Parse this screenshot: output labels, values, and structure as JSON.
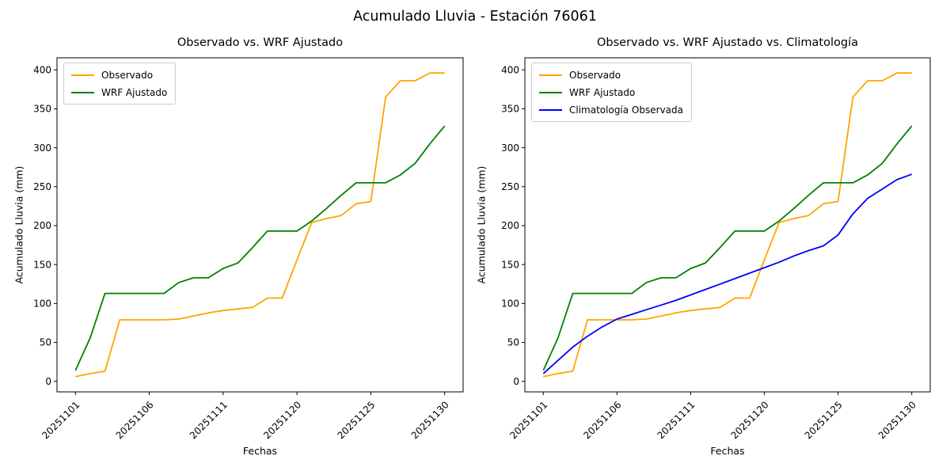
{
  "figure": {
    "title": "Acumulado Lluvia - Estación 76061",
    "background": "#ffffff",
    "text_color": "#000000",
    "spine_color": "#000000",
    "legend_border_color": "#cccccc"
  },
  "chart_data": [
    {
      "type": "line",
      "title": "Observado vs. WRF Ajustado",
      "xlabel": "Fechas",
      "ylabel": "Acumulado Lluvia (mm)",
      "n_points": 26,
      "y_ticks": [
        0,
        50,
        100,
        150,
        200,
        250,
        300,
        350,
        400
      ],
      "y_range_shown": [
        0,
        400
      ],
      "x_tick_positions": [
        0,
        5,
        10,
        15,
        20,
        25
      ],
      "x_tick_labels": [
        "20251101",
        "20251106",
        "20251111",
        "20251120",
        "20251125",
        "20251130"
      ],
      "x_tick_rotation_deg": 45,
      "grid": false,
      "legend_position": "upper left",
      "series": [
        {
          "name": "Observado",
          "color": "#FFA500",
          "values": [
            6,
            10,
            13,
            79,
            79,
            79,
            79,
            80,
            84,
            88,
            91,
            93,
            95,
            107,
            107,
            156,
            204,
            209,
            213,
            228,
            231,
            365,
            386,
            386,
            396,
            396
          ]
        },
        {
          "name": "WRF Ajustado",
          "color": "#008000",
          "values": [
            14,
            56,
            113,
            113,
            113,
            113,
            113,
            127,
            133,
            133,
            145,
            152,
            172,
            193,
            193,
            193,
            206,
            222,
            239,
            255,
            255,
            255,
            265,
            280,
            305,
            328
          ]
        }
      ]
    },
    {
      "type": "line",
      "title": "Observado vs. WRF Ajustado vs. Climatología",
      "xlabel": "Fechas",
      "ylabel": "Acumulado Lluvia (mm)",
      "n_points": 26,
      "y_ticks": [
        0,
        50,
        100,
        150,
        200,
        250,
        300,
        350,
        400
      ],
      "y_range_shown": [
        0,
        400
      ],
      "x_tick_positions": [
        0,
        5,
        10,
        15,
        20,
        25
      ],
      "x_tick_labels": [
        "20251101",
        "20251106",
        "20251111",
        "20251120",
        "20251125",
        "20251130"
      ],
      "x_tick_rotation_deg": 45,
      "grid": false,
      "legend_position": "upper left",
      "series": [
        {
          "name": "Observado",
          "color": "#FFA500",
          "values": [
            6,
            10,
            13,
            79,
            79,
            79,
            79,
            80,
            84,
            88,
            91,
            93,
            95,
            107,
            107,
            156,
            204,
            209,
            213,
            228,
            231,
            365,
            386,
            386,
            396,
            396
          ]
        },
        {
          "name": "WRF Ajustado",
          "color": "#008000",
          "values": [
            14,
            56,
            113,
            113,
            113,
            113,
            113,
            127,
            133,
            133,
            145,
            152,
            172,
            193,
            193,
            193,
            206,
            222,
            239,
            255,
            255,
            255,
            265,
            280,
            305,
            328
          ]
        },
        {
          "name": "Climatología Observada",
          "color": "#0000FF",
          "values": [
            10,
            27,
            44,
            58,
            70,
            80,
            86,
            92,
            98,
            104,
            111,
            118,
            125,
            132,
            139,
            146,
            153,
            161,
            168,
            174,
            188,
            215,
            235,
            247,
            259,
            266
          ]
        }
      ]
    }
  ]
}
